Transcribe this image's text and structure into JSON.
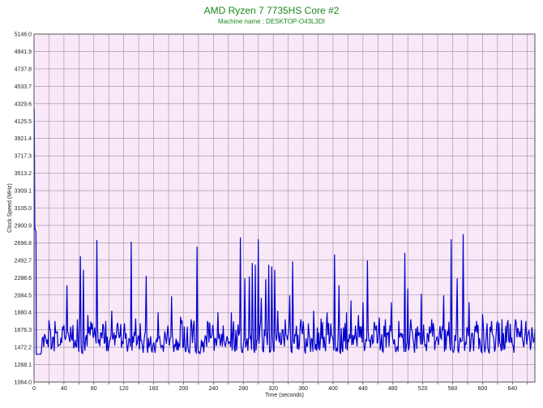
{
  "chart_data": {
    "type": "line",
    "title": "AMD Ryzen 7 7735HS Core #2",
    "subtitle": "Machine name : DESKTOP-O43L3DI",
    "xlabel": "Time (seconds)",
    "ylabel": "Clock Speed (MHz)",
    "xlim": [
      0,
      670
    ],
    "ylim": [
      1064.0,
      5146.0
    ],
    "x_ticks": [
      0,
      20,
      40,
      60,
      80,
      100,
      120,
      140,
      160,
      180,
      200,
      220,
      240,
      260,
      280,
      300,
      320,
      340,
      360,
      380,
      400,
      420,
      440,
      460,
      480,
      500,
      520,
      540,
      560,
      580,
      600,
      620,
      640,
      660
    ],
    "x_tick_labels": [
      "0",
      "",
      "40",
      "",
      "80",
      "",
      "120",
      "",
      "160",
      "",
      "200",
      "",
      "240",
      "",
      "280",
      "",
      "320",
      "",
      "360",
      "",
      "400",
      "",
      "440",
      "",
      "480",
      "",
      "520",
      "",
      "560",
      "",
      "600",
      "",
      "640",
      ""
    ],
    "y_ticks": [
      1064.0,
      1268.1,
      1472.2,
      1676.3,
      1880.4,
      2084.5,
      2288.6,
      2492.7,
      2696.8,
      2900.9,
      3105.0,
      3309.1,
      3513.2,
      3717.3,
      3921.4,
      4125.5,
      4329.6,
      4533.7,
      4737.8,
      4941.9,
      5146.0
    ],
    "y_tick_labels": [
      "1064.0",
      "1268.1",
      "1472.2",
      "1676.3",
      "1880.4",
      "2084.5",
      "2288.6",
      "2492.7",
      "2696.8",
      "2900.9",
      "3105.0",
      "3309.1",
      "3513.2",
      "3717.3",
      "3921.4",
      "4125.5",
      "4329.6",
      "4533.7",
      "4737.8",
      "4941.9",
      "5146.0"
    ],
    "grid": true,
    "line_color": "#0000cc",
    "plot_bg": "#f8e8f8",
    "grid_color": "#9c8a9c",
    "base_level": 1560,
    "floor_level": 1390,
    "start_peak": 4270,
    "start_plateau": 2880,
    "spikes": [
      [
        20,
        1790
      ],
      [
        28,
        1780
      ],
      [
        44,
        2200
      ],
      [
        58,
        1800
      ],
      [
        62,
        2540
      ],
      [
        66,
        2380
      ],
      [
        72,
        1850
      ],
      [
        84,
        2730
      ],
      [
        96,
        1780
      ],
      [
        104,
        1900
      ],
      [
        112,
        1760
      ],
      [
        130,
        2710
      ],
      [
        136,
        1810
      ],
      [
        150,
        2310
      ],
      [
        166,
        1880
      ],
      [
        184,
        2070
      ],
      [
        196,
        1830
      ],
      [
        210,
        1800
      ],
      [
        218,
        2650
      ],
      [
        232,
        1780
      ],
      [
        246,
        1880
      ],
      [
        264,
        1880
      ],
      [
        276,
        2760
      ],
      [
        282,
        2280
      ],
      [
        288,
        2300
      ],
      [
        292,
        2460
      ],
      [
        296,
        2440
      ],
      [
        300,
        2740
      ],
      [
        304,
        2050
      ],
      [
        310,
        2270
      ],
      [
        314,
        2440
      ],
      [
        318,
        2420
      ],
      [
        322,
        2380
      ],
      [
        326,
        1900
      ],
      [
        336,
        1800
      ],
      [
        342,
        2080
      ],
      [
        346,
        2480
      ],
      [
        360,
        1780
      ],
      [
        374,
        1900
      ],
      [
        384,
        1810
      ],
      [
        392,
        1880
      ],
      [
        402,
        2560
      ],
      [
        408,
        2200
      ],
      [
        418,
        1880
      ],
      [
        424,
        2020
      ],
      [
        434,
        1850
      ],
      [
        440,
        2000
      ],
      [
        446,
        2490
      ],
      [
        462,
        1820
      ],
      [
        470,
        1800
      ],
      [
        478,
        2000
      ],
      [
        488,
        1780
      ],
      [
        496,
        2580
      ],
      [
        500,
        2160
      ],
      [
        504,
        1800
      ],
      [
        518,
        2100
      ],
      [
        532,
        1800
      ],
      [
        548,
        2080
      ],
      [
        558,
        2740
      ],
      [
        566,
        2280
      ],
      [
        574,
        2800
      ],
      [
        582,
        2000
      ],
      [
        592,
        1780
      ],
      [
        600,
        1860
      ],
      [
        612,
        1780
      ],
      [
        620,
        1780
      ],
      [
        626,
        1800
      ],
      [
        634,
        1790
      ],
      [
        644,
        1800
      ],
      [
        652,
        1790
      ],
      [
        658,
        1780
      ]
    ]
  }
}
